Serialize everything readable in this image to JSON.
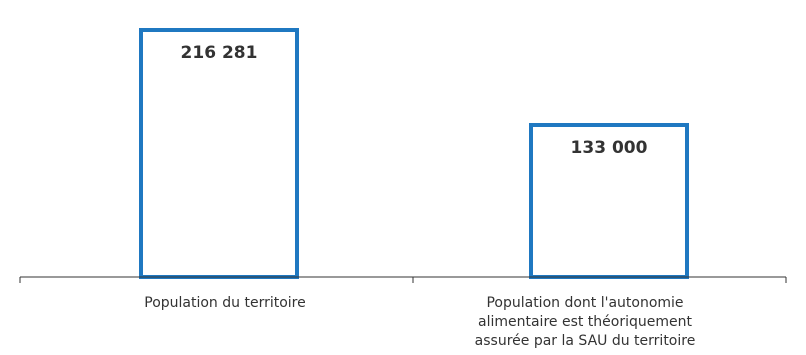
{
  "chart_data": {
    "type": "bar",
    "categories": [
      "Population du territoire",
      "Population dont l'autonomie alimentaire est théoriquement assurée par la SAU du territoire"
    ],
    "category_lines": [
      [
        "Population du territoire"
      ],
      [
        "Population dont l'autonomie",
        "alimentaire est théoriquement",
        "assurée par la SAU du territoire"
      ]
    ],
    "values": [
      216281,
      133000
    ],
    "value_labels": [
      "216 281",
      "133 000"
    ],
    "title": "",
    "xlabel": "",
    "ylabel": "",
    "ylim": [
      0,
      234000
    ],
    "grid": false,
    "legend": "none",
    "colors": {
      "bar_stroke": "#1f78c1",
      "bar_fill": "#ffffff",
      "axis": "#333333",
      "label_text": "#333333"
    }
  }
}
